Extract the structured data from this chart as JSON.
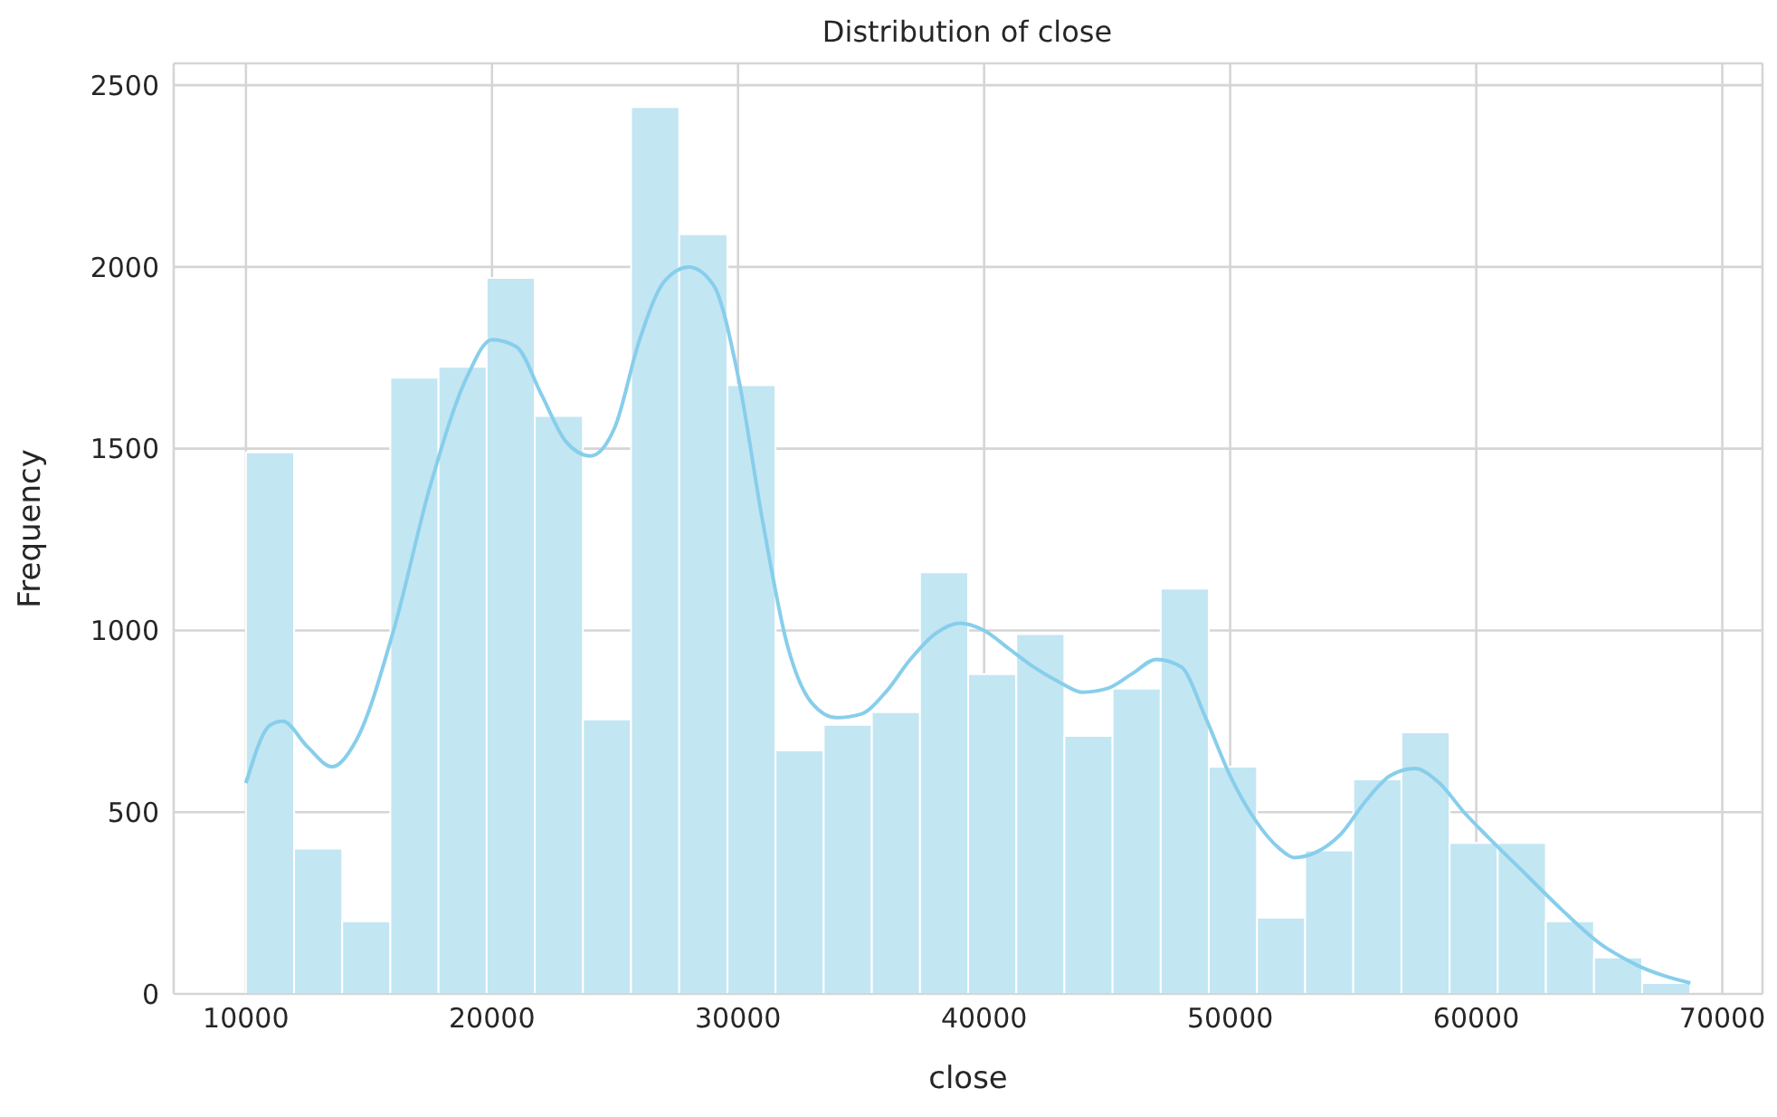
{
  "chart_data": {
    "type": "histogram",
    "title": "Distribution of close",
    "xlabel": "close",
    "ylabel": "Frequency",
    "bins": [
      10000,
      11957,
      13913,
      15870,
      17827,
      19783,
      21740,
      23697,
      25653,
      27610,
      29567,
      31523,
      33480,
      35437,
      37393,
      39350,
      41307,
      43263,
      45220,
      47177,
      49133,
      51090,
      53047,
      55003,
      56960,
      58917,
      60873,
      62830,
      64787,
      66743,
      68700
    ],
    "series": [
      {
        "color": "#c3e6f3",
        "values": [
          1490,
          400,
          200,
          1695,
          1725,
          1970,
          1590,
          755,
          2440,
          2090,
          1675,
          670,
          740,
          775,
          1160,
          880,
          990,
          710,
          840,
          1115,
          625,
          210,
          395,
          590,
          720,
          415,
          415,
          200,
          100,
          30
        ]
      },
      {
        "type": "line",
        "color": "#87ceeb",
        "x": [
          10000,
          11000,
          11500,
          12500,
          13500,
          14500,
          16000,
          17500,
          19000,
          20000,
          21000,
          22000,
          23000,
          24000,
          25000,
          26000,
          27000,
          28000,
          29000,
          30000,
          31000,
          32000,
          33000,
          34000,
          35000,
          36000,
          37000,
          38000,
          39000,
          40000,
          41000,
          42000,
          43000,
          44000,
          45000,
          46000,
          47000,
          48000,
          49000,
          50000,
          51000,
          52000,
          52600,
          53500,
          54500,
          55500,
          56500,
          57500,
          58500,
          59500,
          60500,
          62000,
          63500,
          65000,
          66500,
          68700
        ],
        "values": [
          580,
          740,
          750,
          680,
          625,
          700,
          1000,
          1400,
          1700,
          1800,
          1780,
          1650,
          1520,
          1480,
          1560,
          1800,
          1960,
          2000,
          1950,
          1700,
          1300,
          960,
          800,
          760,
          770,
          830,
          920,
          990,
          1020,
          1000,
          950,
          900,
          860,
          830,
          840,
          880,
          920,
          900,
          760,
          600,
          480,
          400,
          375,
          390,
          440,
          530,
          600,
          620,
          580,
          500,
          430,
          330,
          230,
          140,
          80,
          30
        ]
      }
    ],
    "xlim": [
      7065,
      71635
    ],
    "xticks": [
      10000,
      20000,
      30000,
      40000,
      50000,
      60000,
      70000
    ],
    "ylim": [
      0,
      2560
    ],
    "yticks": [
      0,
      500,
      1000,
      1500,
      2000,
      2500
    ],
    "grid": true,
    "legend": false
  }
}
